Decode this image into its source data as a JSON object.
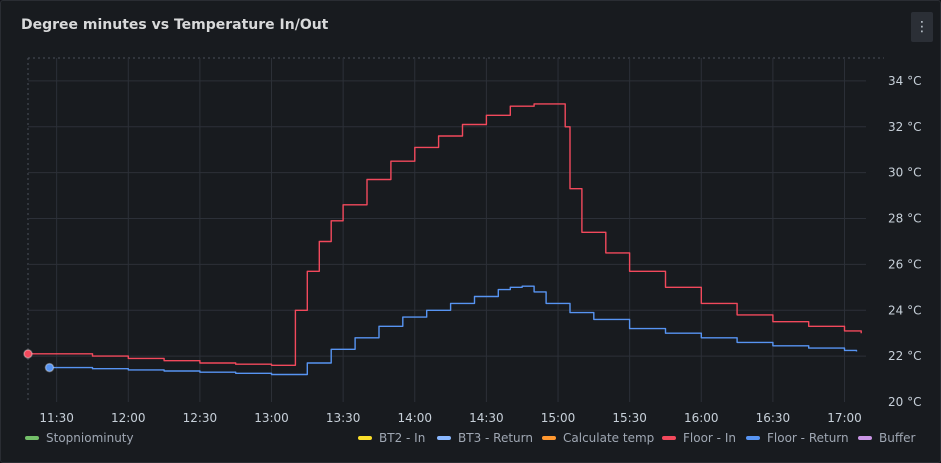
{
  "panel": {
    "title": "Degree minutes vs Temperature In/Out",
    "menu_icon": "kebab-menu-icon",
    "menu_glyph": "⋮"
  },
  "colors": {
    "background": "#181b1f",
    "grid": "#2c3038",
    "axis_text": "#c7d0d9",
    "Stopniominuty": "#73bf69",
    "BT2 - In": "#fade2a",
    "BT3 - Return": "#8ab8ff",
    "Calculate temp": "#ff9830",
    "Floor - In": "#f2495c",
    "Floor - Return": "#5794f2",
    "Buffer": "#ca95e5"
  },
  "chart_data": {
    "type": "line",
    "x_ticks": [
      "11:30",
      "12:00",
      "12:30",
      "13:00",
      "13:30",
      "14:00",
      "14:30",
      "15:00",
      "15:30",
      "16:00",
      "16:30",
      "17:00"
    ],
    "xlim": [
      "11:18",
      "17:09"
    ],
    "y_ticks": [
      "20 °C",
      "22 °C",
      "24 °C",
      "26 °C",
      "28 °C",
      "30 °C",
      "32 °C",
      "34 °C"
    ],
    "ylim": [
      20,
      35
    ],
    "y_unit": "°C",
    "y_axis_position": "right",
    "grid": true,
    "legend_position": "bottom",
    "legend": [
      "Stopniominuty",
      "BT2 - In",
      "BT3 - Return",
      "Calculate temp",
      "Floor - In",
      "Floor - Return",
      "Buffer"
    ],
    "series": [
      {
        "name": "Floor - In",
        "color": "#f2495c",
        "x": [
          "11:18",
          "11:30",
          "11:45",
          "12:00",
          "12:15",
          "12:30",
          "12:45",
          "13:00",
          "13:03",
          "13:10",
          "13:15",
          "13:20",
          "13:25",
          "13:30",
          "13:40",
          "13:50",
          "14:00",
          "14:10",
          "14:20",
          "14:30",
          "14:40",
          "14:50",
          "14:55",
          "15:00",
          "15:03",
          "15:05",
          "15:10",
          "15:20",
          "15:30",
          "15:45",
          "16:00",
          "16:15",
          "16:30",
          "16:45",
          "17:00",
          "17:07"
        ],
        "y": [
          22.1,
          22.1,
          22.0,
          21.9,
          21.8,
          21.7,
          21.65,
          21.6,
          21.6,
          24.0,
          25.7,
          27.0,
          27.9,
          28.6,
          29.7,
          30.5,
          31.1,
          31.6,
          32.1,
          32.5,
          32.9,
          33.0,
          33.0,
          33.0,
          32.0,
          29.3,
          27.4,
          26.5,
          25.7,
          25.0,
          24.3,
          23.8,
          23.5,
          23.3,
          23.1,
          23.0
        ]
      },
      {
        "name": "Floor - Return",
        "color": "#5794f2",
        "x": [
          "11:27",
          "11:35",
          "11:45",
          "12:00",
          "12:15",
          "12:30",
          "12:45",
          "13:00",
          "13:05",
          "13:15",
          "13:25",
          "13:35",
          "13:45",
          "13:55",
          "14:05",
          "14:15",
          "14:25",
          "14:35",
          "14:40",
          "14:45",
          "14:50",
          "14:55",
          "15:05",
          "15:15",
          "15:30",
          "15:45",
          "16:00",
          "16:15",
          "16:30",
          "16:45",
          "17:00",
          "17:05"
        ],
        "y": [
          21.5,
          21.5,
          21.45,
          21.4,
          21.35,
          21.3,
          21.25,
          21.2,
          21.2,
          21.7,
          22.3,
          22.8,
          23.3,
          23.7,
          24.0,
          24.3,
          24.6,
          24.9,
          25.0,
          25.05,
          24.8,
          24.3,
          23.9,
          23.6,
          23.2,
          23.0,
          22.8,
          22.6,
          22.45,
          22.35,
          22.25,
          22.2
        ]
      }
    ]
  }
}
